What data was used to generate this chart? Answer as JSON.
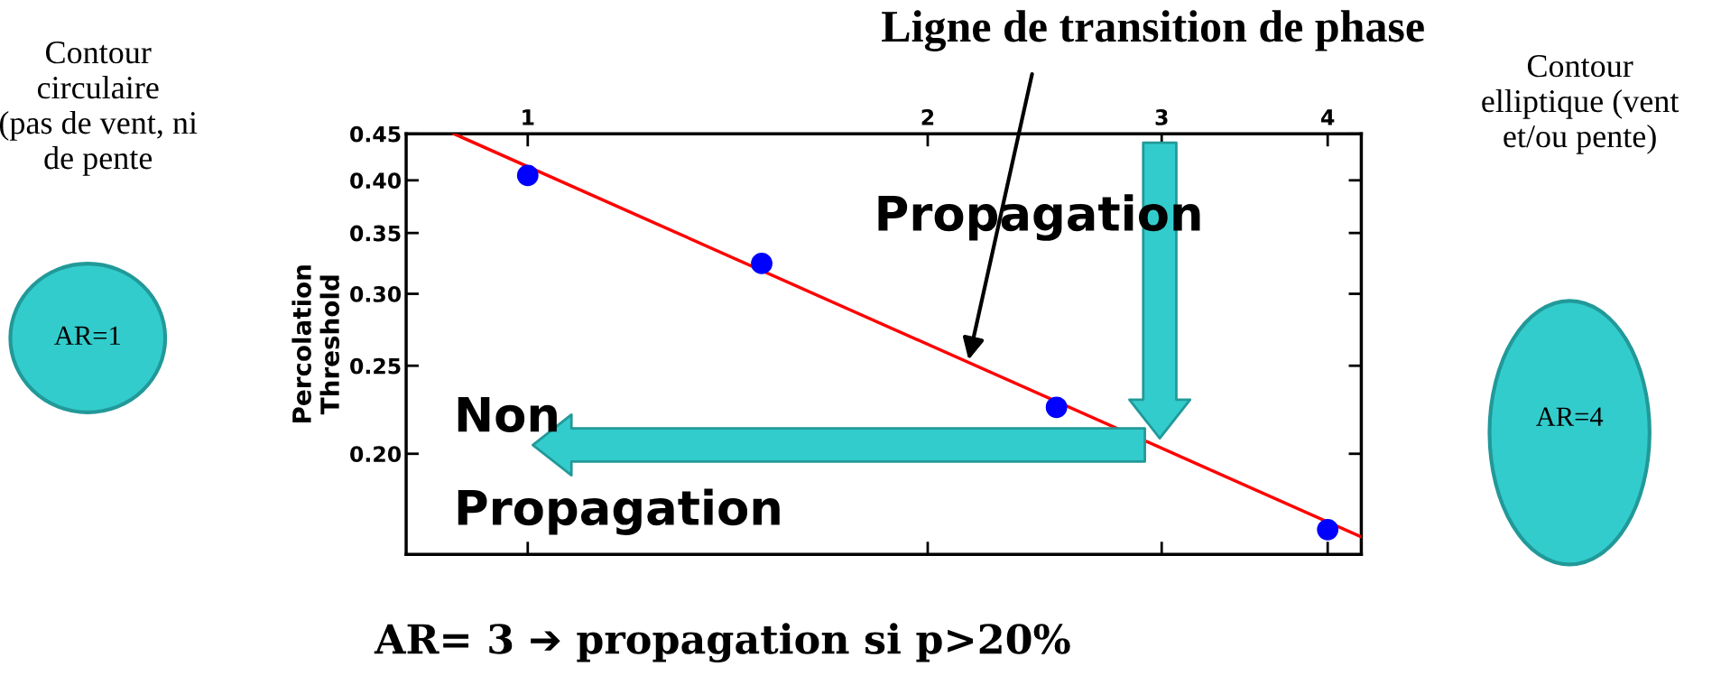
{
  "chart_data": {
    "type": "scatter",
    "ylabel": "Percolation\nThreshold",
    "x": [
      1,
      1.5,
      2.5,
      4
    ],
    "series": [
      {
        "color": "#0000ff",
        "values": [
          0.405,
          0.324,
          0.225,
          0.165
        ]
      },
      {
        "type": "line",
        "color": "#ff0000",
        "x": [
          0.88,
          4.24
        ],
        "values": [
          0.45,
          0.162
        ]
      }
    ],
    "log": "xy",
    "grid": false,
    "tick_labels": "xy",
    "xlim": [
      0.81,
      4.24
    ],
    "xticks": [
      1,
      2,
      3,
      4
    ],
    "ylim": [
      0.155,
      0.45
    ],
    "yticks": [
      {
        "value": 0.2,
        "label": "0.20"
      },
      0.25,
      {
        "value": 0.3,
        "label": "0.30"
      },
      0.35,
      {
        "value": 0.4,
        "label": "0.40"
      },
      0.45
    ],
    "annotations": [
      "Ligne de transition de phase",
      "Propagation",
      "Non\nPropagation",
      "Contour\ncirculaire\n(pas de vent, ni\nde pente",
      "AR=1",
      "Contour\nelliptique (vent\net/ou pente)",
      "AR=4",
      "AR= 3 ➔ propagation si p>20%"
    ]
  }
}
